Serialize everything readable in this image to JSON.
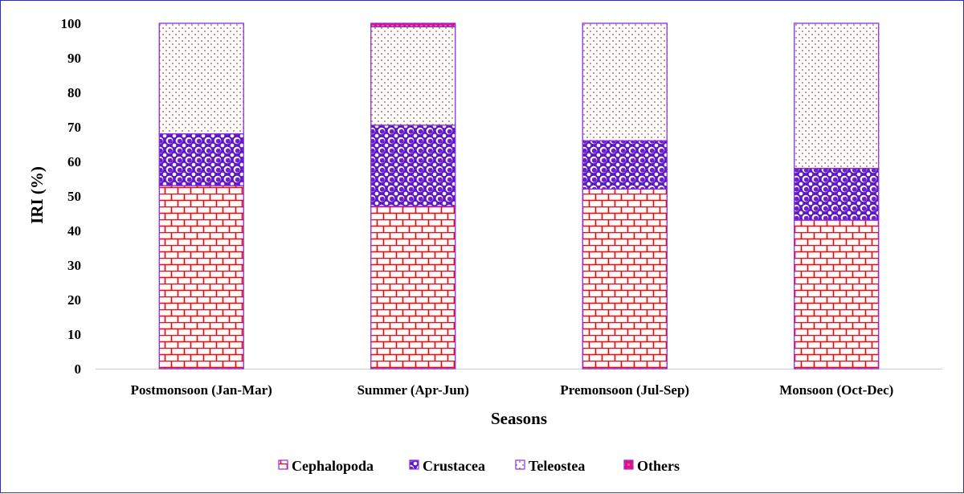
{
  "chart_data": {
    "type": "bar",
    "stacked": true,
    "xlabel": "Seasons",
    "ylabel": "IRI (%)",
    "ylim": [
      0,
      100
    ],
    "yticks": [
      0,
      10,
      20,
      30,
      40,
      50,
      60,
      70,
      80,
      90,
      100
    ],
    "grid": false,
    "legend_position": "bottom",
    "categories": [
      "Postmonsoon (Jan-Mar)",
      "Summer (Apr-Jun)",
      "Premonsoon (Jul-Sep)",
      "Monsoon (Oct-Dec)"
    ],
    "series": [
      {
        "name": "Cephalopoda",
        "values": [
          53,
          47,
          52,
          43
        ],
        "color": "#ff0000",
        "pattern": "brick"
      },
      {
        "name": "Crustacea",
        "values": [
          15,
          23.5,
          14,
          15
        ],
        "color": "#6a1fd1",
        "pattern": "sphere"
      },
      {
        "name": "Teleostea",
        "values": [
          32,
          28.5,
          34,
          42
        ],
        "color": "#c86a4a",
        "pattern": "dots"
      },
      {
        "name": "Others",
        "values": [
          0,
          1,
          0,
          0
        ],
        "color": "#e0127a",
        "pattern": "solid"
      }
    ],
    "bar_outline_color": "#8a2be2"
  }
}
